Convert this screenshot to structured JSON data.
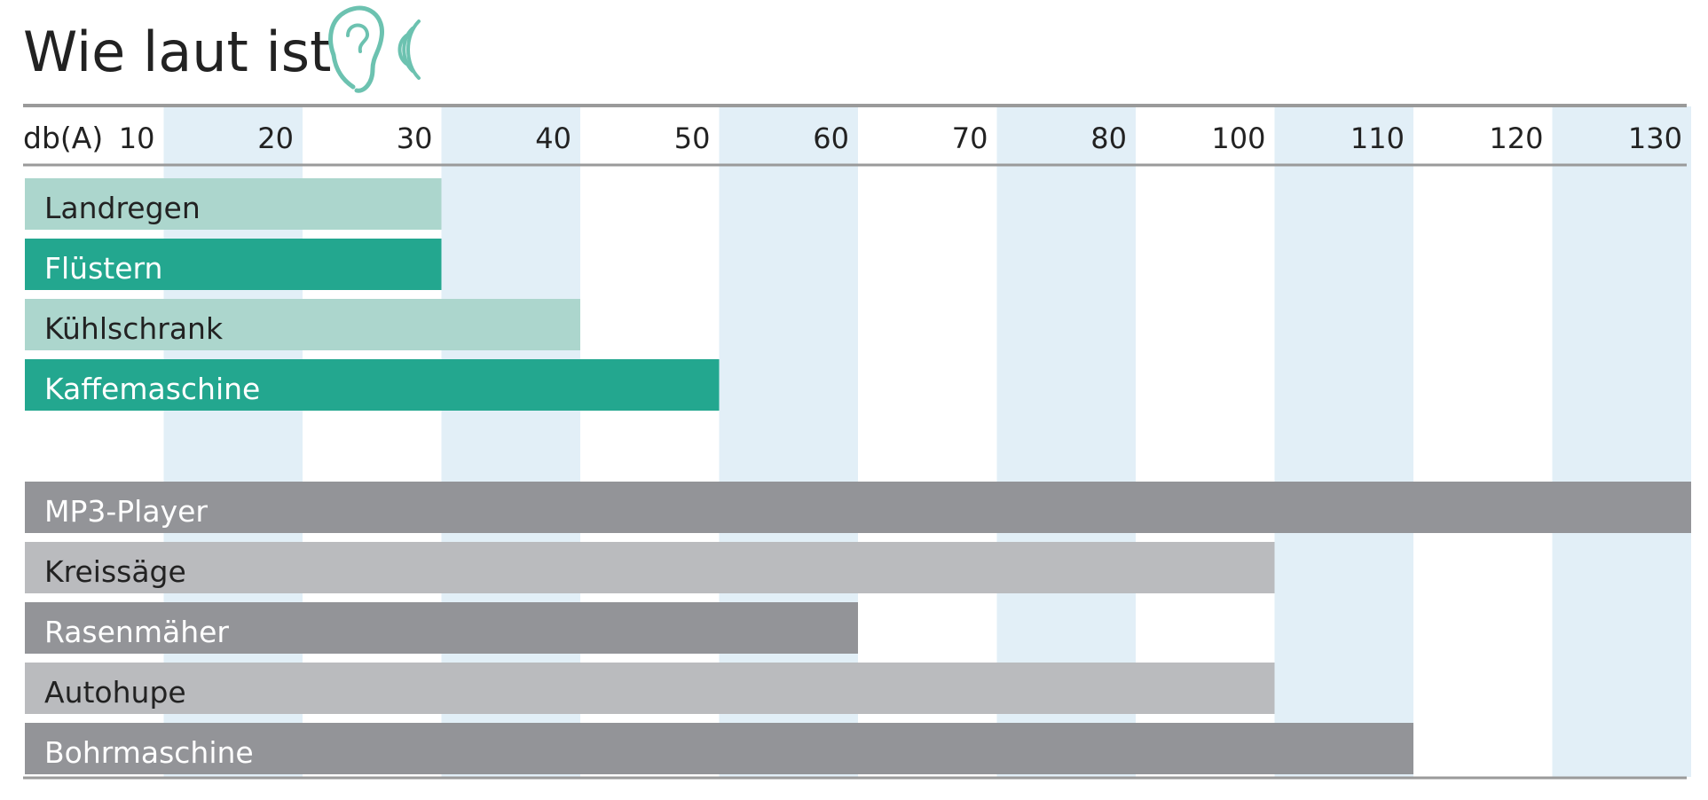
{
  "colors": {
    "band": "#e2eff7",
    "axis_line": "#9a9a9a",
    "teal_light": "#acd6cd",
    "teal_dark": "#23a78f",
    "gray_dark": "#939498",
    "gray_light": "#babbbe",
    "text_dark": "#222222",
    "text_light": "#ffffff",
    "icon": "#6cc2b0"
  },
  "icon": "ear-sound-icon",
  "chart_data": {
    "type": "bar",
    "orientation": "horizontal",
    "title": "Wie laut ist",
    "unit_label": "db(A)",
    "ticks": [
      "10",
      "20",
      "30",
      "40",
      "50",
      "60",
      "70",
      "80",
      "100",
      "110",
      "120",
      "130"
    ],
    "grid": "alternating vertical bands",
    "groups": [
      {
        "name": "",
        "bars": [
          {
            "label": "Landregen",
            "value": 30,
            "color": "teal_light",
            "text": "text_dark"
          },
          {
            "label": "Flüstern",
            "value": 30,
            "color": "teal_dark",
            "text": "text_light"
          },
          {
            "label": "Kühlschrank",
            "value": 40,
            "color": "teal_light",
            "text": "text_dark"
          },
          {
            "label": "Kaffemaschine",
            "value": 50,
            "color": "teal_dark",
            "text": "text_light"
          }
        ]
      },
      {
        "name": "",
        "bars": [
          {
            "label": "MP3-Player",
            "value": 130,
            "color": "gray_dark",
            "text": "text_light"
          },
          {
            "label": "Kreissäge",
            "value": 100,
            "color": "gray_light",
            "text": "text_dark"
          },
          {
            "label": "Rasenmäher",
            "value": 60,
            "color": "gray_dark",
            "text": "text_light"
          },
          {
            "label": "Autohupe",
            "value": 100,
            "color": "gray_light",
            "text": "text_dark"
          },
          {
            "label": "Bohrmaschine",
            "value": 110,
            "color": "gray_dark",
            "text": "text_light"
          }
        ]
      }
    ]
  }
}
